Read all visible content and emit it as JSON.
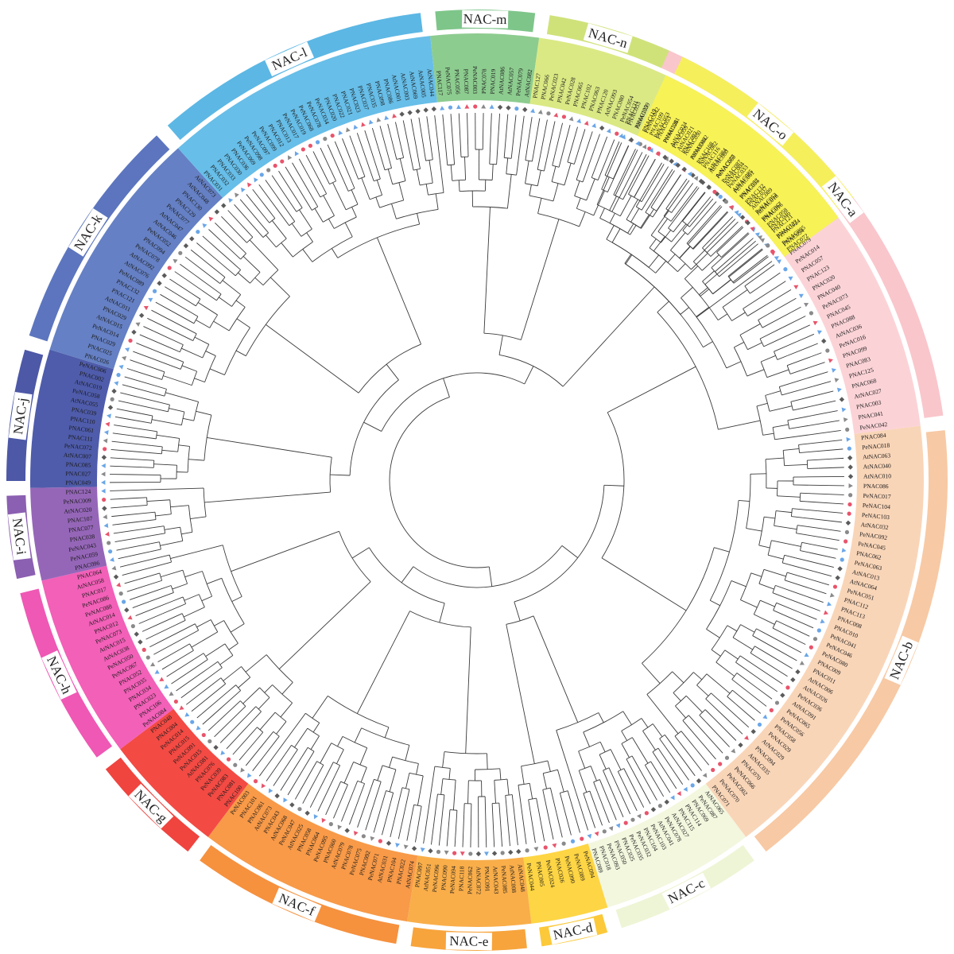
{
  "clades": [
    {
      "name": "NAC-a",
      "color": "#f9c6cc",
      "band": "#fbd3d7",
      "start": 22,
      "end": 83,
      "leaves": [
        "PNAC131",
        "PNAC133",
        "PeNAC042",
        "PeNAC053",
        "PeNAC081",
        "PNAC059",
        "PNAC093",
        "PNAC044",
        "AtNAC062",
        "AtNAC084",
        "PeNAC060",
        "AtNAC004",
        "AtNAC085",
        "PNAC055",
        "PNAC037",
        "PeNAC052",
        "PNAC016",
        "PNAC046",
        "PNAC122",
        "PNAC054",
        "PNAC079",
        "PeNAC014",
        "PNAC057",
        "PNAC123",
        "PNAC020",
        "PNAC040",
        "PeNAC073",
        "PNAC045",
        "PNAC088",
        "AtNAC036",
        "PeNAC016",
        "PNAC099",
        "PNAC083",
        "PNAC125",
        "PNAC068",
        "AtNAC027",
        "PNAC003",
        "PNAC041",
        "PeNAC042"
      ]
    },
    {
      "name": "NAC-b",
      "color": "#f7c9a4",
      "band": "#f9d5b8",
      "start": 83,
      "end": 143,
      "leaves": [
        "PNAC084",
        "PeNAC018",
        "AtNAC063",
        "AtNAC040",
        "AtNAC010",
        "PNAC086",
        "PeNAC017",
        "PeNAC104",
        "PeNAC103",
        "AtNAC032",
        "PeNAC092",
        "PeNAC045",
        "PNAC062",
        "PeNAC063",
        "AtNAC013",
        "AtNAC064",
        "PeNAC051",
        "PNAC112",
        "PNAC113",
        "PNAC008",
        "PNAC010",
        "PeNAC041",
        "PeNAC046",
        "PeNAC080",
        "PNAC009",
        "PNAC011",
        "AtNAC006",
        "AtNAC026",
        "PeNAC036",
        "AtNAC091",
        "PeNAC065",
        "PeNAC056",
        "PNAC058",
        "PeNAC029",
        "AtNAC029",
        "PNAC094",
        "AtNAC035",
        "PNAC070",
        "PeNAC066",
        "PeNAC002",
        "PeNAC070",
        "PNAC071"
      ]
    },
    {
      "name": "NAC-c",
      "color": "#eef5d6",
      "band": "#f2f7de",
      "start": 143,
      "end": 163,
      "leaves": [
        "AtNAC065",
        "PeNAC087",
        "PNAC069",
        "PNAC114",
        "PNAC115",
        "AtNAC027",
        "PeNAC078",
        "AtNAC041",
        "PeNAC103",
        "PNAC104",
        "PeNAC032",
        "PeNAC035",
        "PNAC025",
        "PNAC050",
        "PeNAC093",
        "PNAC018",
        "PNAC089"
      ]
    },
    {
      "name": "NAC-d",
      "color": "#fcc93a",
      "band": "#fed544",
      "start": 163,
      "end": 173,
      "leaves": [
        "PeNAC094",
        "PeNAC089",
        "PeNAC090",
        "PNAC026",
        "PeNAC024",
        "PNAC005",
        "PeNAC044"
      ]
    },
    {
      "name": "NAC-e",
      "color": "#f7a43c",
      "band": "#f9ae4a",
      "start": 173,
      "end": 189,
      "leaves": [
        "AtNAC048",
        "AtNAC008",
        "PeNAC085",
        "AtNAC043",
        "PNAC091",
        "AtNAC072",
        "PeNAC062",
        "PNAC118",
        "PeNAC094",
        "PNAC090",
        "PeNAC096",
        "AtNAC051",
        "PNAC097"
      ]
    },
    {
      "name": "NAC-f",
      "color": "#f6913e",
      "band": "#f89a48",
      "start": 189,
      "end": 217,
      "leaves": [
        "AtNAC074",
        "PNAC022",
        "PNAC104",
        "AtNAC031",
        "PeNAC071",
        "PNAC092",
        "PeNAC075",
        "PNAC078",
        "AtNAC079",
        "PNAC060",
        "PeNAC095",
        "PNAC064",
        "PNAC058",
        "AtNAC025",
        "PeNAC047",
        "AtNAC068",
        "PNAC043",
        "AtNAC073",
        "PNAC061",
        "PNAC101",
        "PeNAC003"
      ]
    },
    {
      "name": "NAC-g",
      "color": "#f0443f",
      "band": "#f34a44",
      "start": 217,
      "end": 233,
      "leaves": [
        "PNAC100",
        "PNAC081",
        "PeNAC083",
        "PeNAC039",
        "PNAC076",
        "AtNAC081",
        "PeNAC015",
        "PeNAC091",
        "PNAC015",
        "PeNAC014",
        "PNAC004",
        "PNAC048"
      ]
    },
    {
      "name": "NAC-h",
      "color": "#ef58b4",
      "band": "#f260b8",
      "start": 233,
      "end": 257,
      "leaves": [
        "PeNAC084",
        "PNAC106",
        "PNAC023",
        "PNAC034",
        "PNAC035",
        "PNAC052",
        "PeNAC067",
        "PeNAC050",
        "AtNAC038",
        "AtNAC015",
        "PeNAC073",
        "PNAC012",
        "AtNAC014",
        "PeNAC088",
        "PeNAC086",
        "PNAC017",
        "AtNAC058",
        "PNAC064"
      ]
    },
    {
      "name": "NAC-i",
      "color": "#8b5fb1",
      "band": "#9566b8",
      "start": 257,
      "end": 269,
      "leaves": [
        "PNAC096",
        "PeNAC059",
        "PeNAC043",
        "PNAC038",
        "PNAC077",
        "PNAC107",
        "AtNAC020",
        "PeNAC009",
        "PNAC124"
      ]
    },
    {
      "name": "NAC-j",
      "color": "#4d58a6",
      "band": "#4f5cab",
      "start": 269,
      "end": 287,
      "leaves": [
        "PNAC049",
        "PNAC027",
        "PNAC085",
        "AtNAC007",
        "PeNAC072",
        "PNAC111",
        "PNAC061",
        "PNAC110",
        "PNAC039",
        "AtNAC055",
        "PeNAC058",
        "AtNAC019",
        "PNAC002",
        "PeNAC006"
      ]
    },
    {
      "name": "NAC-k",
      "color": "#5c75be",
      "band": "#6580c4",
      "start": 287,
      "end": 318,
      "leaves": [
        "PNAC026",
        "PNAC025",
        "PNAC029",
        "PeNAC014",
        "AtNAC015",
        "PNAC029",
        "AtNAC011",
        "PNAC121",
        "PNAC132",
        "PeNAC089",
        "AtNAC076",
        "AtNAC092",
        "PeNAC078",
        "PNAC094",
        "PeNAC052",
        "AtNAC046",
        "AtNAC047",
        "PeNAC077",
        "PNAC129",
        "PNAC130",
        "AtNAC048",
        "AtNAC073"
      ]
    },
    {
      "name": "NAC-l",
      "color": "#5cb7e4",
      "band": "#67bee8",
      "start": 318,
      "end": 354,
      "leaves": [
        "PNAC031",
        "PNAC032",
        "PNAC033",
        "PNAC030",
        "PNAC036",
        "PeNAC069",
        "PeNAC098",
        "PeNAC097",
        "PeNAC099",
        "PNAC012",
        "PNAC013",
        "PeNAC017",
        "PeNAC019",
        "PeNAC068",
        "PeNAC078",
        "PeNAC034",
        "PNAC020",
        "PNAC022",
        "PNAC021",
        "PNAC023",
        "PNAC037",
        "PNAC035",
        "PNAC098",
        "PNAC086",
        "AtNAC001",
        "AtNAC003",
        "AtNAC069",
        "AtNAC005",
        "AtNAC044"
      ]
    },
    {
      "name": "NAC-m",
      "color": "#7ec58a",
      "band": "#8dcc8f",
      "start": 354,
      "end": 368,
      "leaves": [
        "PNAC117",
        "PeNAC075",
        "PNAC056",
        "PNAC087",
        "PeNAC003",
        "PNAC078",
        "PNAC019",
        "AtNAC086",
        "AtNAC057",
        "PeNAC079",
        "AtNAC082"
      ]
    },
    {
      "name": "NAC-n",
      "color": "#cfe27a",
      "band": "#dbe984",
      "start": 368,
      "end": 385,
      "leaves": [
        "PNAC127",
        "PNAC066",
        "PeNAC023",
        "PNAC042",
        "PeNAC028",
        "PNAC065",
        "PNAC102",
        "PNAC063",
        "PNAC120",
        "AtNAC093",
        "PNAC080",
        "PeNAC054",
        "PNAC053",
        "AtNAC059"
      ]
    },
    {
      "name": "NAC-o",
      "color": "#f5ef5c",
      "band": "#f7f256",
      "start": 385,
      "end": 414,
      "leaves": [
        "PNAC119",
        "PNAC109",
        "PNAC053",
        "PNAC126",
        "AtNAC024",
        "AtNAC021",
        "AtNAC050",
        "AtNAC092",
        "PNAC108",
        "PNAC116",
        "AtNAC060",
        "AtNAC077",
        "PeNAC087",
        "PeNAC033",
        "PeNAC061",
        "PNAC032",
        "PNAC132",
        "AtNAC089",
        "AtNAC018",
        "PNAC067",
        "PNAC058",
        "PNAC121",
        "PeNAC024",
        "PeNAC085",
        "PNAC072"
      ]
    }
  ]
}
